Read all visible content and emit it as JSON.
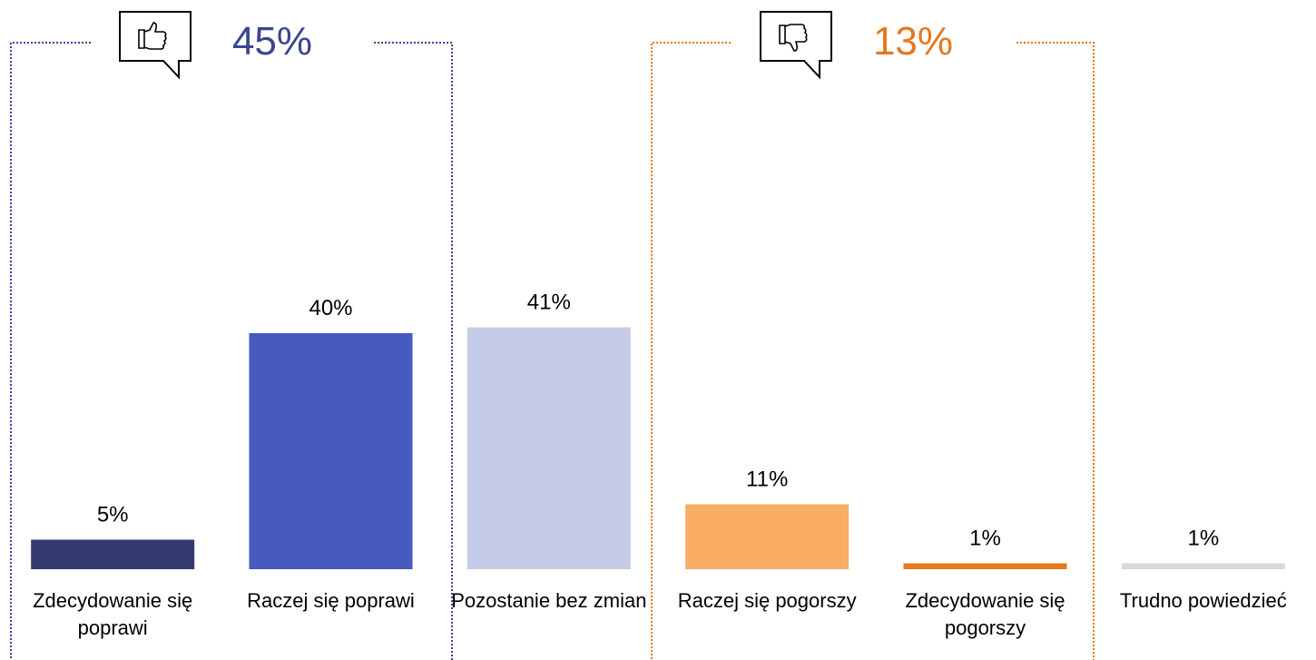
{
  "chart_data": {
    "type": "bar",
    "categories": [
      "Zdecydowanie się poprawi",
      "Raczej się poprawi",
      "Pozostanie bez zmian",
      "Raczej się pogorszy",
      "Zdecydowanie się pogorszy",
      "Trudno powiedzieć"
    ],
    "values": [
      5,
      40,
      41,
      11,
      1,
      1
    ],
    "value_labels": [
      "5%",
      "40%",
      "41%",
      "11%",
      "1%",
      "1%"
    ],
    "colors": [
      "#323a70",
      "#465bbd",
      "#c5cbe6",
      "#f8ac64",
      "#e6781e",
      "#d9d9d9"
    ],
    "ylim": [
      0,
      60
    ],
    "annotations": [
      {
        "text": "45%",
        "color": "#3b4590"
      },
      {
        "text": "13%",
        "color": "#e6781e"
      }
    ]
  }
}
